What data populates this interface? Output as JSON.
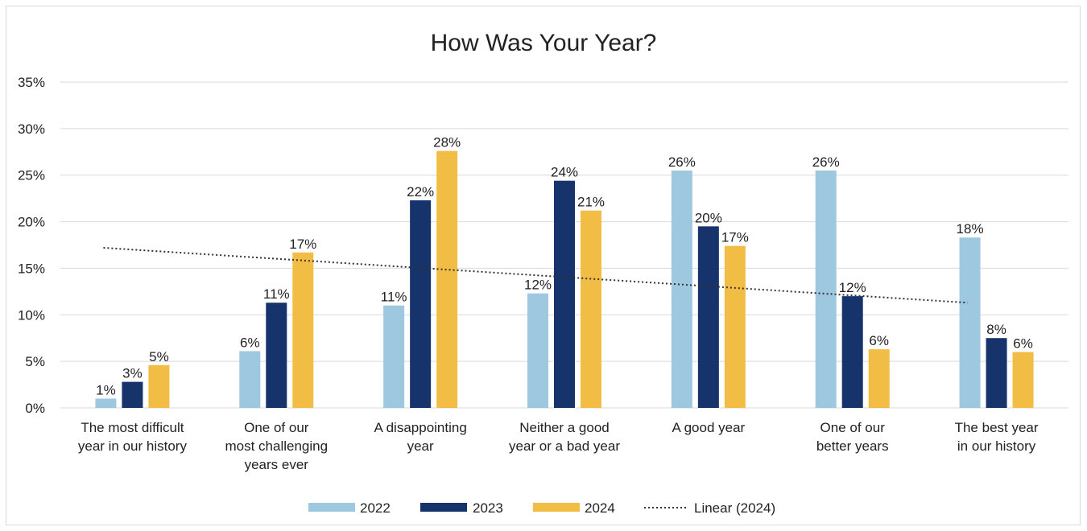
{
  "chart_data": {
    "type": "bar",
    "title": "How Was Your Year?",
    "categories": [
      [
        "The most difficult",
        "year in our history"
      ],
      [
        "One of our",
        "most challenging",
        "years ever"
      ],
      [
        "A disappointing",
        "year"
      ],
      [
        "Neither a good",
        "year or a bad year"
      ],
      [
        "A good year"
      ],
      [
        "One of our",
        "better years"
      ],
      [
        "The best year",
        "in our history"
      ]
    ],
    "series": [
      {
        "name": "2022",
        "color": "#9dc8e0",
        "values": [
          1,
          6,
          11,
          12,
          26,
          26,
          18
        ],
        "precise": [
          1.0,
          6.1,
          11.0,
          12.3,
          25.5,
          25.5,
          18.3
        ]
      },
      {
        "name": "2023",
        "color": "#16336b",
        "values": [
          3,
          11,
          22,
          24,
          20,
          12,
          8
        ],
        "precise": [
          2.8,
          11.3,
          22.3,
          24.4,
          19.5,
          12.0,
          7.5
        ]
      },
      {
        "name": "2024",
        "color": "#f2bd45",
        "values": [
          5,
          17,
          28,
          21,
          17,
          6,
          6
        ],
        "precise": [
          4.6,
          16.7,
          27.6,
          21.2,
          17.4,
          6.3,
          6.0
        ]
      }
    ],
    "trendline": {
      "name": "Linear (2024)",
      "start": 17.2,
      "end": 11.3
    },
    "yticks": [
      "0%",
      "5%",
      "10%",
      "15%",
      "20%",
      "25%",
      "30%",
      "35%"
    ],
    "ylim": [
      0,
      35
    ],
    "xlabel": "",
    "ylabel": "",
    "grid": true,
    "legend": "bottom"
  }
}
